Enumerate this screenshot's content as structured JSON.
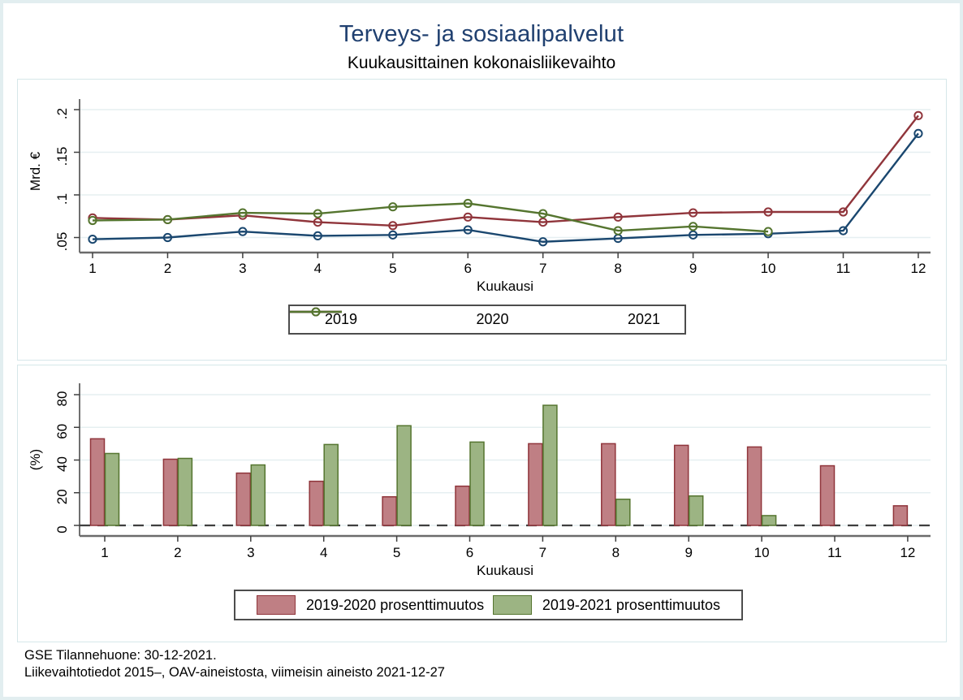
{
  "title": "Terveys- ja sosiaalipalvelut",
  "subtitle": "Kuukausittainen kokonaisliikevaihto",
  "colors": {
    "title_navy": "#204070",
    "line_2019": "#1a476f",
    "line_2020": "#90353b",
    "line_2021": "#55752f",
    "bar_2019_2020_fill": "#bf7f84",
    "bar_2019_2020_border": "#90353b",
    "bar_2019_2021_fill": "#9cb483",
    "bar_2019_2021_border": "#55752f",
    "gridline": "#e6eff1",
    "axis": "#6b6b6b",
    "zero_dash": "#3f3f3f",
    "panel_border": "#d6e7e9"
  },
  "chart_data": [
    {
      "type": "line",
      "title": "Kuukausittainen kokonaisliikevaihto",
      "x": [
        1,
        2,
        3,
        4,
        5,
        6,
        7,
        8,
        9,
        10,
        11,
        12
      ],
      "xlabel": "Kuukausi",
      "ylabel": "Mrd. €",
      "yticks": [
        {
          "label": ".05",
          "value": 0.05
        },
        {
          "label": ".1",
          "value": 0.1
        },
        {
          "label": ".15",
          "value": 0.15
        },
        {
          "label": ".2",
          "value": 0.2
        }
      ],
      "ylim": [
        0.031,
        0.221
      ],
      "grid": true,
      "legend_position": "bottom",
      "series": [
        {
          "name": "2019",
          "color": "#1a476f",
          "values": [
            0.048,
            0.05,
            0.057,
            0.052,
            0.053,
            0.059,
            0.045,
            0.049,
            0.053,
            0.0545,
            0.058,
            0.172
          ]
        },
        {
          "name": "2020",
          "color": "#90353b",
          "values": [
            0.073,
            0.071,
            0.076,
            0.068,
            0.064,
            0.074,
            0.068,
            0.074,
            0.079,
            0.08,
            0.08,
            0.193
          ]
        },
        {
          "name": "2021",
          "color": "#55752f",
          "values": [
            0.07,
            0.071,
            0.079,
            0.078,
            0.086,
            0.09,
            0.078,
            0.058,
            0.063,
            0.057,
            null,
            null
          ]
        }
      ]
    },
    {
      "type": "bar",
      "categories": [
        1,
        2,
        3,
        4,
        5,
        6,
        7,
        8,
        9,
        10,
        11,
        12
      ],
      "xlabel": "Kuukausi",
      "ylabel": "(%)",
      "yticks": [
        {
          "label": "0",
          "value": 0
        },
        {
          "label": "20",
          "value": 20
        },
        {
          "label": "40",
          "value": 40
        },
        {
          "label": "60",
          "value": 60
        },
        {
          "label": "80",
          "value": 80
        }
      ],
      "ylim": [
        -7,
        88
      ],
      "grid": true,
      "zero_line": "dashed",
      "legend_position": "bottom",
      "series": [
        {
          "name": "2019-2020 prosenttimuutos",
          "fill": "#bf7f84",
          "border": "#90353b",
          "values": [
            53,
            40.5,
            32,
            27,
            17.5,
            24,
            50,
            50,
            49,
            48,
            36.5,
            12
          ]
        },
        {
          "name": "2019-2021 prosenttimuutos",
          "fill": "#9cb483",
          "border": "#55752f",
          "values": [
            44,
            41,
            37,
            49.5,
            61,
            51,
            73.5,
            16,
            18,
            6,
            null,
            null
          ]
        }
      ]
    }
  ],
  "footer": {
    "line1": "GSE Tilannehuone: 30-12-2021.",
    "line2": "Liikevaihtotiedot 2015–, OAV-aineistosta, viimeisin aineisto 2021-12-27"
  }
}
